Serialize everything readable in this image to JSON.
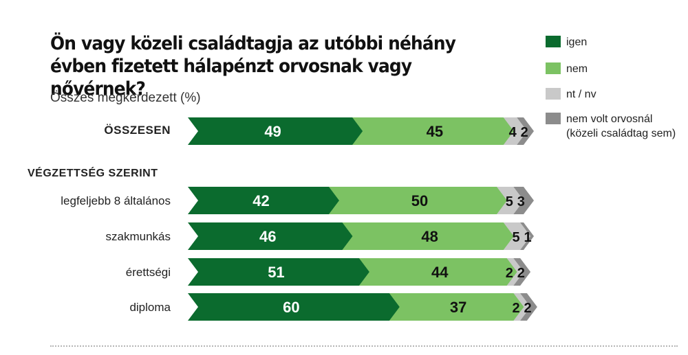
{
  "title": "Ön vagy közeli családtagja az utóbbi néhány évben fizetett hálapénzt orvosnak vagy nővérnek?",
  "subtitle": "Összes megkérdezett (%)",
  "section_label": "VÉGZETTSÉG SZERINT",
  "colors": {
    "igen": "#0b6b2e",
    "nem": "#7cc263",
    "nt_nv": "#c9c9c9",
    "nem_volt": "#8c8c8c"
  },
  "legend": [
    {
      "key": "igen",
      "label": "igen"
    },
    {
      "key": "nem",
      "label": "nem"
    },
    {
      "key": "nt_nv",
      "label": "nt / nv"
    },
    {
      "key": "nem_volt",
      "label": "nem volt orvosnál (közeli családtag sem)"
    }
  ],
  "chart_data": {
    "type": "bar",
    "orientation": "horizontal",
    "stacked": true,
    "unit": "%",
    "categories": [
      "ÖSSZESEN",
      "legfeljebb 8 általános",
      "szakmunkás",
      "érettségi",
      "diploma"
    ],
    "series": [
      {
        "name": "igen",
        "values": [
          49,
          42,
          46,
          51,
          60
        ]
      },
      {
        "name": "nem",
        "values": [
          45,
          50,
          48,
          44,
          37
        ]
      },
      {
        "name": "nt / nv",
        "values": [
          4,
          5,
          5,
          2,
          2
        ]
      },
      {
        "name": "nem volt orvosnál (közeli családtag sem)",
        "values": [
          2,
          3,
          1,
          2,
          2
        ]
      }
    ]
  }
}
